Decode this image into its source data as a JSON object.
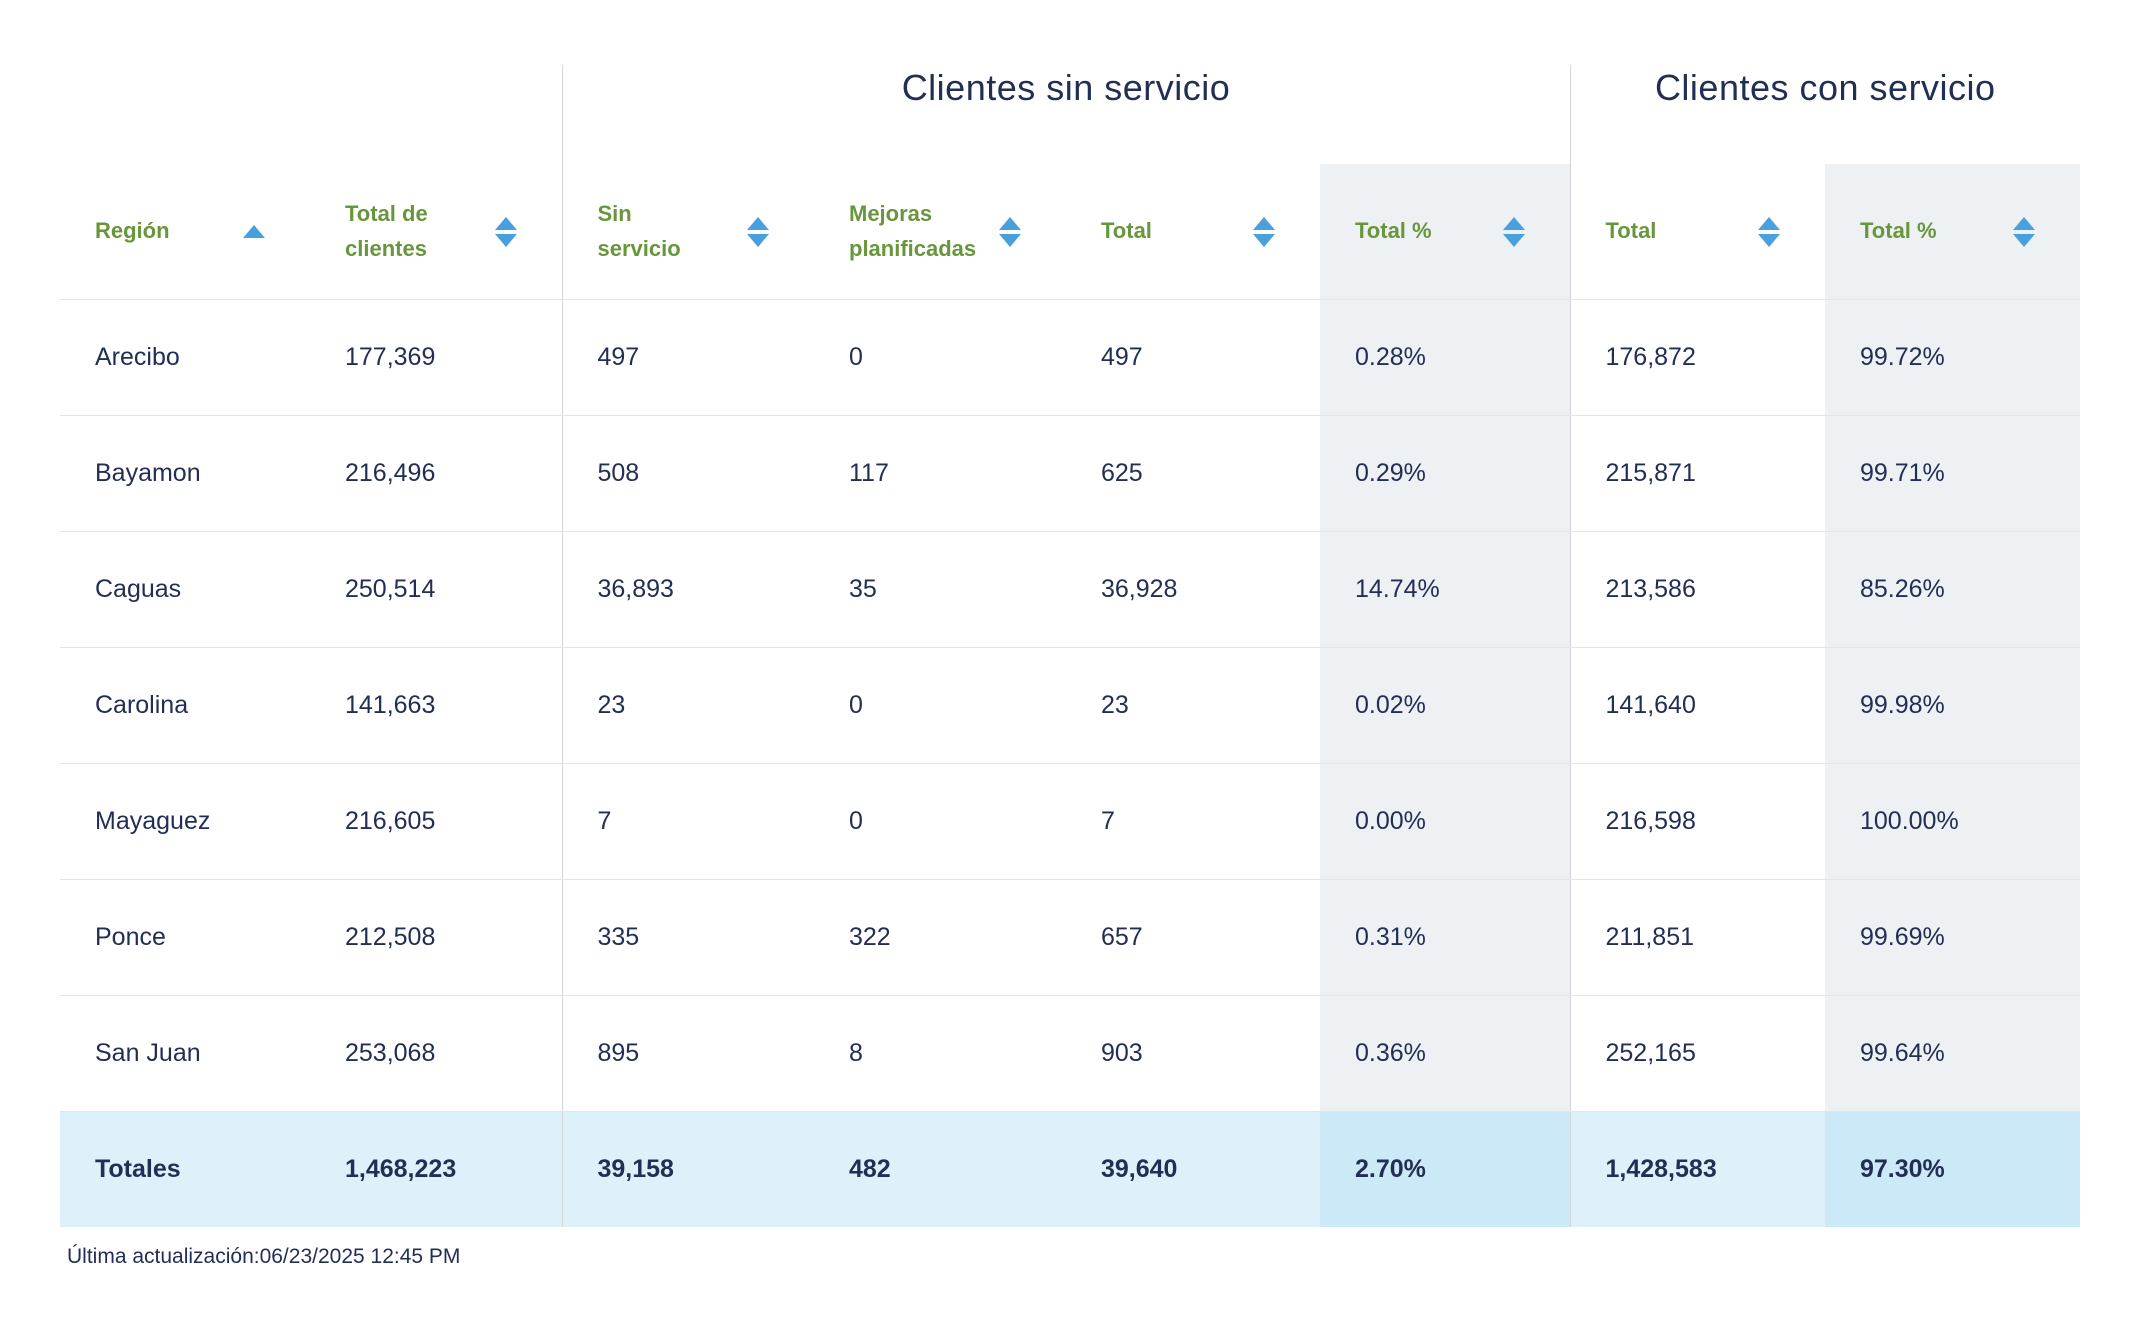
{
  "groups": {
    "sin_servicio": "Clientes sin servicio",
    "con_servicio": "Clientes con servicio"
  },
  "columns": [
    {
      "label": "Región",
      "sorted": "asc"
    },
    {
      "label": "Total de clientes",
      "sorted": "none"
    },
    {
      "label": "Sin servicio",
      "sorted": "none"
    },
    {
      "label": "Mejoras planificadas",
      "sorted": "none"
    },
    {
      "label": "Total",
      "sorted": "none"
    },
    {
      "label": "Total %",
      "sorted": "none"
    },
    {
      "label": "Total",
      "sorted": "none"
    },
    {
      "label": "Total %",
      "sorted": "none"
    }
  ],
  "rows": [
    {
      "region": "Arecibo",
      "total_clientes": "177,369",
      "sin_servicio": "497",
      "mejoras": "0",
      "total_sin": "497",
      "total_pct_sin": "0.28%",
      "total_con": "176,872",
      "total_pct_con": "99.72%"
    },
    {
      "region": "Bayamon",
      "total_clientes": "216,496",
      "sin_servicio": "508",
      "mejoras": "117",
      "total_sin": "625",
      "total_pct_sin": "0.29%",
      "total_con": "215,871",
      "total_pct_con": "99.71%"
    },
    {
      "region": "Caguas",
      "total_clientes": "250,514",
      "sin_servicio": "36,893",
      "mejoras": "35",
      "total_sin": "36,928",
      "total_pct_sin": "14.74%",
      "total_con": "213,586",
      "total_pct_con": "85.26%"
    },
    {
      "region": "Carolina",
      "total_clientes": "141,663",
      "sin_servicio": "23",
      "mejoras": "0",
      "total_sin": "23",
      "total_pct_sin": "0.02%",
      "total_con": "141,640",
      "total_pct_con": "99.98%"
    },
    {
      "region": "Mayaguez",
      "total_clientes": "216,605",
      "sin_servicio": "7",
      "mejoras": "0",
      "total_sin": "7",
      "total_pct_sin": "0.00%",
      "total_con": "216,598",
      "total_pct_con": "100.00%"
    },
    {
      "region": "Ponce",
      "total_clientes": "212,508",
      "sin_servicio": "335",
      "mejoras": "322",
      "total_sin": "657",
      "total_pct_sin": "0.31%",
      "total_con": "211,851",
      "total_pct_con": "99.69%"
    },
    {
      "region": "San Juan",
      "total_clientes": "253,068",
      "sin_servicio": "895",
      "mejoras": "8",
      "total_sin": "903",
      "total_pct_sin": "0.36%",
      "total_con": "252,165",
      "total_pct_con": "99.64%"
    }
  ],
  "totals": {
    "region": "Totales",
    "total_clientes": "1,468,223",
    "sin_servicio": "39,158",
    "mejoras": "482",
    "total_sin": "39,640",
    "total_pct_sin": "2.70%",
    "total_con": "1,428,583",
    "total_pct_con": "97.30%"
  },
  "footer": {
    "last_update": "Última actualización:06/23/2025 12:45 PM"
  },
  "colors": {
    "navy": "#232e54",
    "green": "#68963c",
    "arrow": "#4aa0dc",
    "col_shade": "#eef1f4",
    "row_border": "#e4e5e7",
    "divider": "#d2d4d6",
    "totals_bg": "#def1fa",
    "totals_shade_bg": "#cbe9f6"
  }
}
